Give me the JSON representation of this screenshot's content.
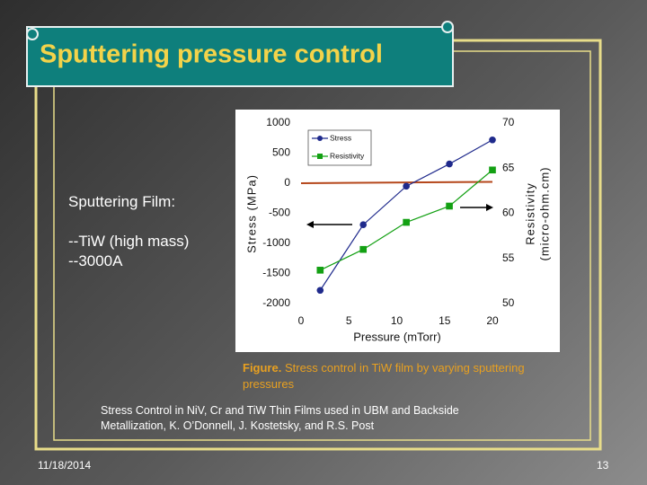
{
  "title": "Sputtering pressure control",
  "body": [
    "Sputtering Film:",
    "--TiW (high mass)",
    "--3000A"
  ],
  "caption": {
    "label": "Figure.",
    "text": "Stress control in TiW film by varying sputtering pressures"
  },
  "reference": "Stress Control in NiV, Cr and TiW Thin Films used in UBM and Backside Metallization, K. O’Donnell, J. Kostetsky, and R.S. Post",
  "footer": {
    "date": "11/18/2014",
    "page": "13"
  },
  "chart_data": {
    "type": "line",
    "x_label": "Pressure (mTorr)",
    "y_label": "Stress (MPa)",
    "y2_label": [
      "Resistivity",
      "(micro-ohm.cm)"
    ],
    "x": [
      2,
      6.5,
      11,
      15.5,
      20
    ],
    "series": [
      {
        "name": "Stress",
        "color": "#1f2a8c",
        "marker": "circle",
        "values": [
          -1780,
          -690,
          -50,
          320,
          720
        ]
      },
      {
        "name": "Resistivity",
        "color": "#13a013",
        "marker": "square",
        "axis": "y2",
        "values": [
          53.7,
          56.0,
          59.0,
          60.8,
          64.8
        ]
      }
    ],
    "xlim": [
      0,
      20
    ],
    "xticks": [
      0,
      5,
      10,
      15,
      20
    ],
    "ylim": [
      -2000,
      1000
    ],
    "yticks": [
      -2000,
      -1500,
      -1000,
      -500,
      0,
      500,
      1000
    ],
    "y2lim": [
      50,
      70
    ],
    "y2ticks": [
      50,
      55,
      60,
      65,
      70
    ],
    "zero_line_color": "#b5471b",
    "legend": "upper left"
  }
}
